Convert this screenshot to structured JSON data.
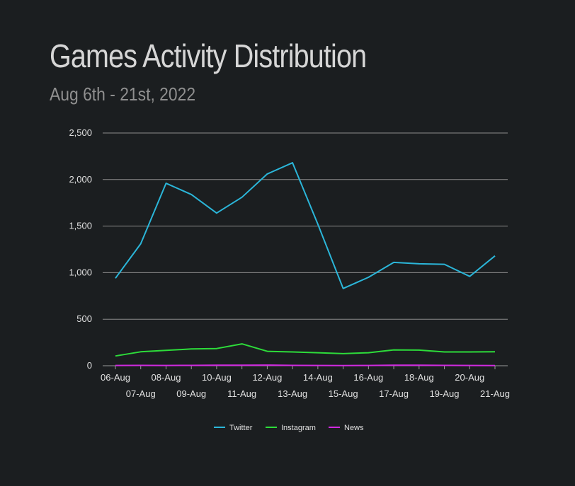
{
  "chart_data": {
    "type": "line",
    "title": "Games Activity Distribution",
    "subtitle": "Aug 6th - 21st, 2022",
    "categories": [
      "06-Aug",
      "07-Aug",
      "08-Aug",
      "09-Aug",
      "10-Aug",
      "11-Aug",
      "12-Aug",
      "13-Aug",
      "14-Aug",
      "15-Aug",
      "16-Aug",
      "17-Aug",
      "18-Aug",
      "19-Aug",
      "20-Aug",
      "21-Aug"
    ],
    "series": [
      {
        "name": "Twitter",
        "color": "#2bb6d9",
        "values": [
          940,
          1310,
          1960,
          1840,
          1640,
          1810,
          2060,
          2180,
          1520,
          830,
          950,
          1110,
          1095,
          1090,
          960,
          1180
        ]
      },
      {
        "name": "Instagram",
        "color": "#2ddc3a",
        "values": [
          105,
          150,
          165,
          180,
          185,
          235,
          155,
          148,
          140,
          130,
          140,
          170,
          168,
          148,
          148,
          150
        ]
      },
      {
        "name": "News",
        "color": "#d12ae0",
        "values": [
          3,
          4,
          3,
          4,
          5,
          6,
          7,
          4,
          3,
          2,
          3,
          6,
          5,
          4,
          3,
          2
        ]
      }
    ],
    "y_ticks": [
      "0",
      "500",
      "1,000",
      "1,500",
      "2,000",
      "2,500"
    ],
    "ylim": [
      0,
      2500
    ],
    "grid": true,
    "legend_position": "bottom-center"
  }
}
